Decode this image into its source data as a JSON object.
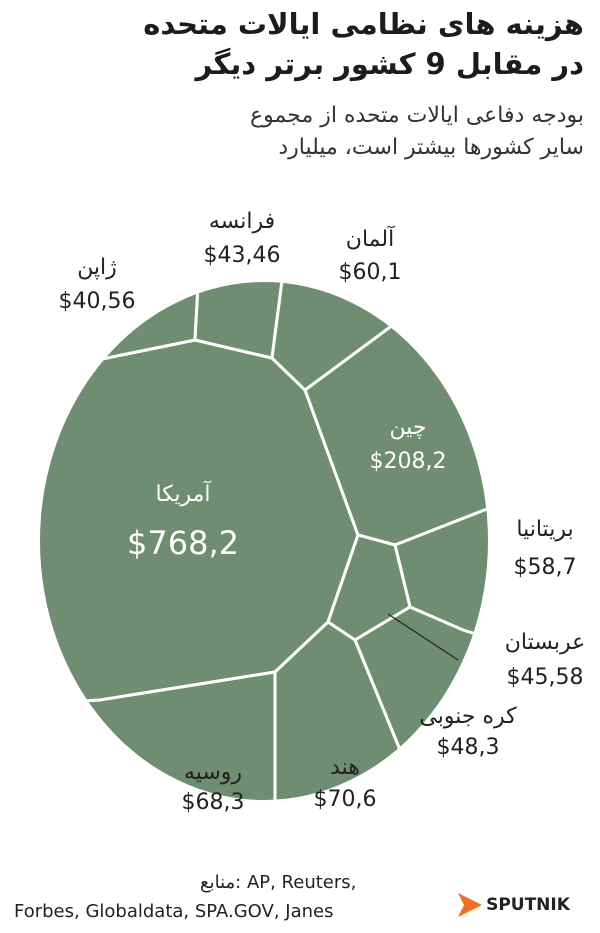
{
  "chart_data": {
    "type": "voronoi-treemap",
    "title": [
      "هزینه های نظامی ایالات متحده",
      "در مقابل 9 کشور برتر دیگر"
    ],
    "subtitle": [
      "بودجه دفاعی ایالات متحده از مجموع",
      "سایر کشورها بیشتر است، میلیارد"
    ],
    "categories": [
      "آمریکا",
      "چین",
      "بریتانیا",
      "عربستان",
      "کره جنوبی",
      "هند",
      "روسیه",
      "ژاپن",
      "فرانسه",
      "آلمان"
    ],
    "values": [
      768.2,
      208.2,
      58.7,
      45.58,
      48.3,
      70.6,
      68.3,
      40.56,
      43.46,
      60.1
    ],
    "value_labels": [
      "$768,2",
      "$208,2",
      "$58,7",
      "$45,58",
      "$48,3",
      "$70,6",
      "$68,3",
      "$40,56",
      "$43,46",
      "$60,1"
    ],
    "color": "#6f8d70",
    "sources": [
      "منابع: AP, Reuters,",
      "Forbes, Globaldata, SPA.GOV, Janes"
    ],
    "logo": "SPUTNIK"
  }
}
